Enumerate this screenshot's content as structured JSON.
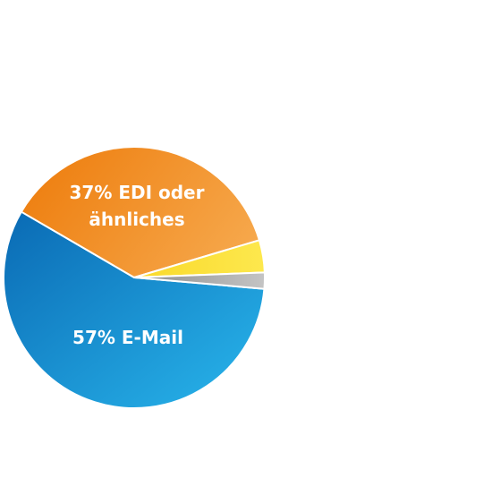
{
  "chart_data": {
    "type": "pie",
    "slices": [
      {
        "label_lines": [
          "57% E-Mail"
        ],
        "value": 57,
        "name": "E-Mail",
        "gradient": [
          "#0a6ab4",
          "#29b6ec"
        ]
      },
      {
        "label_lines": [
          "37% EDI oder",
          "ähnliches"
        ],
        "value": 37,
        "name": "EDI oder ähnliches",
        "gradient": [
          "#ee7f10",
          "#f6a84c"
        ]
      },
      {
        "label_lines": [],
        "value": 4,
        "name": "",
        "gradient": [
          "#f9d92a",
          "#fde84e"
        ]
      },
      {
        "label_lines": [],
        "value": 2,
        "name": "",
        "gradient": [
          "#8d8d8d",
          "#c4c4c4"
        ]
      }
    ],
    "colors": {
      "email": "#1689d3",
      "edi": "#f29a35",
      "yellow": "#fce34a",
      "gray": "#a9a9a9",
      "separator": "#ffffff"
    }
  }
}
